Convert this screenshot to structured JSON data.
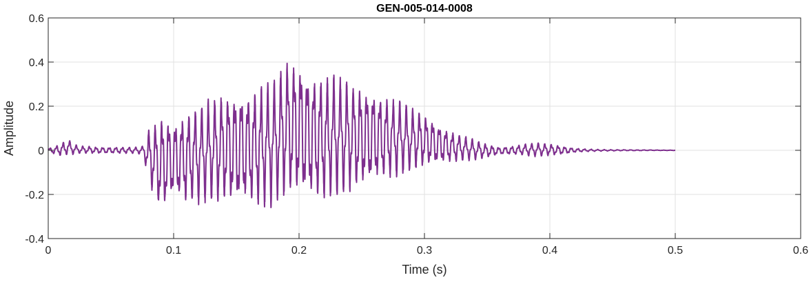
{
  "chart_data": {
    "type": "line",
    "title": "GEN-005-014-0008",
    "xlabel": "Time (s)",
    "ylabel": "Amplitude",
    "xlim": [
      0,
      0.6
    ],
    "ylim": [
      -0.4,
      0.6
    ],
    "xticks": [
      0,
      0.1,
      0.2,
      0.3,
      0.4,
      0.5,
      0.6
    ],
    "xtick_labels": [
      "0",
      "0.1",
      "0.2",
      "0.3",
      "0.4",
      "0.5",
      "0.6"
    ],
    "yticks": [
      -0.4,
      -0.2,
      0,
      0.2,
      0.4,
      0.6
    ],
    "ytick_labels": [
      "-0.4",
      "-0.2",
      "0",
      "0.2",
      "0.4",
      "0.6"
    ],
    "grid": true,
    "line_color": "#7E2F8E",
    "series": [
      {
        "x": [
          0,
          0.006,
          0.012,
          0.016,
          0.02,
          0.025,
          0.03,
          0.04,
          0.05,
          0.06,
          0.07,
          0.076,
          0.08,
          0.085,
          0.09,
          0.095,
          0.1,
          0.11,
          0.12,
          0.13,
          0.14,
          0.15,
          0.16,
          0.17,
          0.18,
          0.19,
          0.2,
          0.21,
          0.22,
          0.23,
          0.24,
          0.25,
          0.26,
          0.27,
          0.28,
          0.29,
          0.3,
          0.31,
          0.32,
          0.33,
          0.34,
          0.35,
          0.36,
          0.37,
          0.38,
          0.39,
          0.4,
          0.41,
          0.42,
          0.43,
          0.44,
          0.45,
          0.46,
          0.47,
          0.48,
          0.49,
          0.5
        ],
        "y_upper": [
          0.01,
          0.02,
          0.04,
          0.05,
          0.03,
          0.02,
          0.02,
          0.015,
          0.015,
          0.015,
          0.015,
          0.02,
          0.1,
          0.13,
          0.17,
          0.16,
          0.14,
          0.18,
          0.21,
          0.24,
          0.27,
          0.28,
          0.28,
          0.3,
          0.33,
          0.42,
          0.42,
          0.36,
          0.34,
          0.35,
          0.32,
          0.3,
          0.28,
          0.25,
          0.23,
          0.2,
          0.17,
          0.13,
          0.09,
          0.07,
          0.05,
          0.03,
          0.015,
          0.02,
          0.03,
          0.035,
          0.03,
          0.02,
          0.01,
          0.006,
          0.004,
          0.003,
          0.003,
          0.002,
          0.002,
          0.001,
          0.001
        ],
        "y_lower": [
          -0.01,
          -0.02,
          -0.03,
          -0.02,
          -0.02,
          -0.015,
          -0.015,
          -0.015,
          -0.015,
          -0.015,
          -0.015,
          -0.02,
          -0.15,
          -0.22,
          -0.3,
          -0.26,
          -0.22,
          -0.25,
          -0.25,
          -0.24,
          -0.25,
          -0.26,
          -0.26,
          -0.27,
          -0.26,
          -0.22,
          -0.22,
          -0.24,
          -0.24,
          -0.22,
          -0.2,
          -0.18,
          -0.16,
          -0.14,
          -0.12,
          -0.1,
          -0.08,
          -0.07,
          -0.06,
          -0.05,
          -0.045,
          -0.035,
          -0.02,
          -0.02,
          -0.025,
          -0.03,
          -0.025,
          -0.02,
          -0.01,
          -0.006,
          -0.004,
          -0.003,
          -0.002,
          -0.002,
          -0.001,
          -0.001,
          -0.001
        ]
      }
    ]
  }
}
